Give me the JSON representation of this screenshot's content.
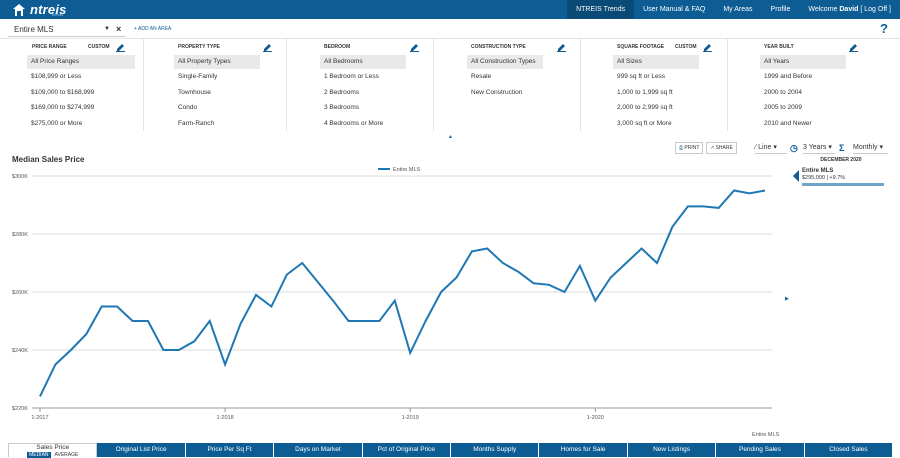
{
  "header": {
    "brand": "ntreis",
    "brand_sub": "trends",
    "nav": [
      "NTREIS Trends",
      "User Manual & FAQ",
      "My Areas",
      "Profile"
    ],
    "welcome_prefix": "Welcome ",
    "user": "David",
    "logoff": " [ Log Off ]"
  },
  "area": {
    "selected": "Entire MLS",
    "add_label": "+ ADD AN AREA",
    "help": "?"
  },
  "filters": {
    "custom_label": "CUSTOM",
    "columns": [
      {
        "title": "PRICE RANGE",
        "custom": true,
        "options": [
          "All Price Ranges",
          "$108,999 or Less",
          "$109,000 to $168,999",
          "$169,000 to $274,999",
          "$275,000 or More"
        ]
      },
      {
        "title": "PROPERTY TYPE",
        "custom": false,
        "options": [
          "All Property Types",
          "Single-Family",
          "Townhouse",
          "Condo",
          "Farm-Ranch"
        ]
      },
      {
        "title": "BEDROOM",
        "custom": false,
        "options": [
          "All Bedrooms",
          "1 Bedroom or Less",
          "2 Bedrooms",
          "3 Bedrooms",
          "4 Bedrooms or More"
        ]
      },
      {
        "title": "CONSTRUCTION TYPE",
        "custom": false,
        "options": [
          "All Construction Types",
          "Resale",
          "New Construction"
        ]
      },
      {
        "title": "SQUARE FOOTAGE",
        "custom": true,
        "options": [
          "All Sizes",
          "999 sq ft or Less",
          "1,000 to 1,999 sq ft",
          "2,000 to 2,999 sq ft",
          "3,000 sq ft or More"
        ]
      },
      {
        "title": "YEAR BUILT",
        "custom": false,
        "options": [
          "All Years",
          "1999 and Before",
          "2000 to 2004",
          "2005 to 2009",
          "2010 and Newer"
        ]
      }
    ]
  },
  "toolbar": {
    "print": "PRINT",
    "share": "SHARE",
    "chart_type": "Line",
    "period": "3 Years",
    "interval": "Monthly"
  },
  "detail": {
    "date": "DECEMBER 2020",
    "name": "Entire MLS",
    "value": "$295,000 | +9.7%"
  },
  "tabs": {
    "active_label": "Sales Price",
    "active_sub": [
      "MEDIAN",
      "AVERAGE"
    ],
    "items": [
      "Original List Price",
      "Price Per Sq Ft",
      "Days on Market",
      "Pct of Original Price",
      "Months Supply",
      "Homes for Sale",
      "New Listings",
      "Pending Sales",
      "Closed Sales"
    ]
  },
  "colors": {
    "brand": "#0d5d94",
    "series": "#1f77b4"
  },
  "chart_data": {
    "type": "line",
    "title": "Median Sales Price",
    "series": [
      {
        "name": "Entire MLS",
        "values": [
          224000,
          235000,
          240000,
          245500,
          255000,
          255000,
          250000,
          250000,
          240000,
          240000,
          243000,
          250000,
          235000,
          249000,
          259000,
          255000,
          266000,
          270000,
          263500,
          257000,
          250000,
          250000,
          250000,
          257000,
          239000,
          250000,
          260000,
          265000,
          274000,
          275000,
          270000,
          267000,
          263000,
          262500,
          260000,
          269000,
          257000,
          265000,
          270000,
          275000,
          270000,
          282500,
          289500,
          289500,
          289000,
          295000,
          294000,
          295000
        ]
      }
    ],
    "x_tick_labels": [
      "1-2017",
      "1-2018",
      "1-2019",
      "1-2020"
    ],
    "x_tick_indices": [
      0,
      12,
      24,
      36
    ],
    "y_ticks": [
      "$220K",
      "$240K",
      "$260K",
      "$280K",
      "$300K"
    ],
    "ylim": [
      220000,
      300000
    ],
    "legend": [
      "Entire MLS"
    ],
    "legend_position": "top-center",
    "source_label": "Entire MLS",
    "grid": true
  }
}
